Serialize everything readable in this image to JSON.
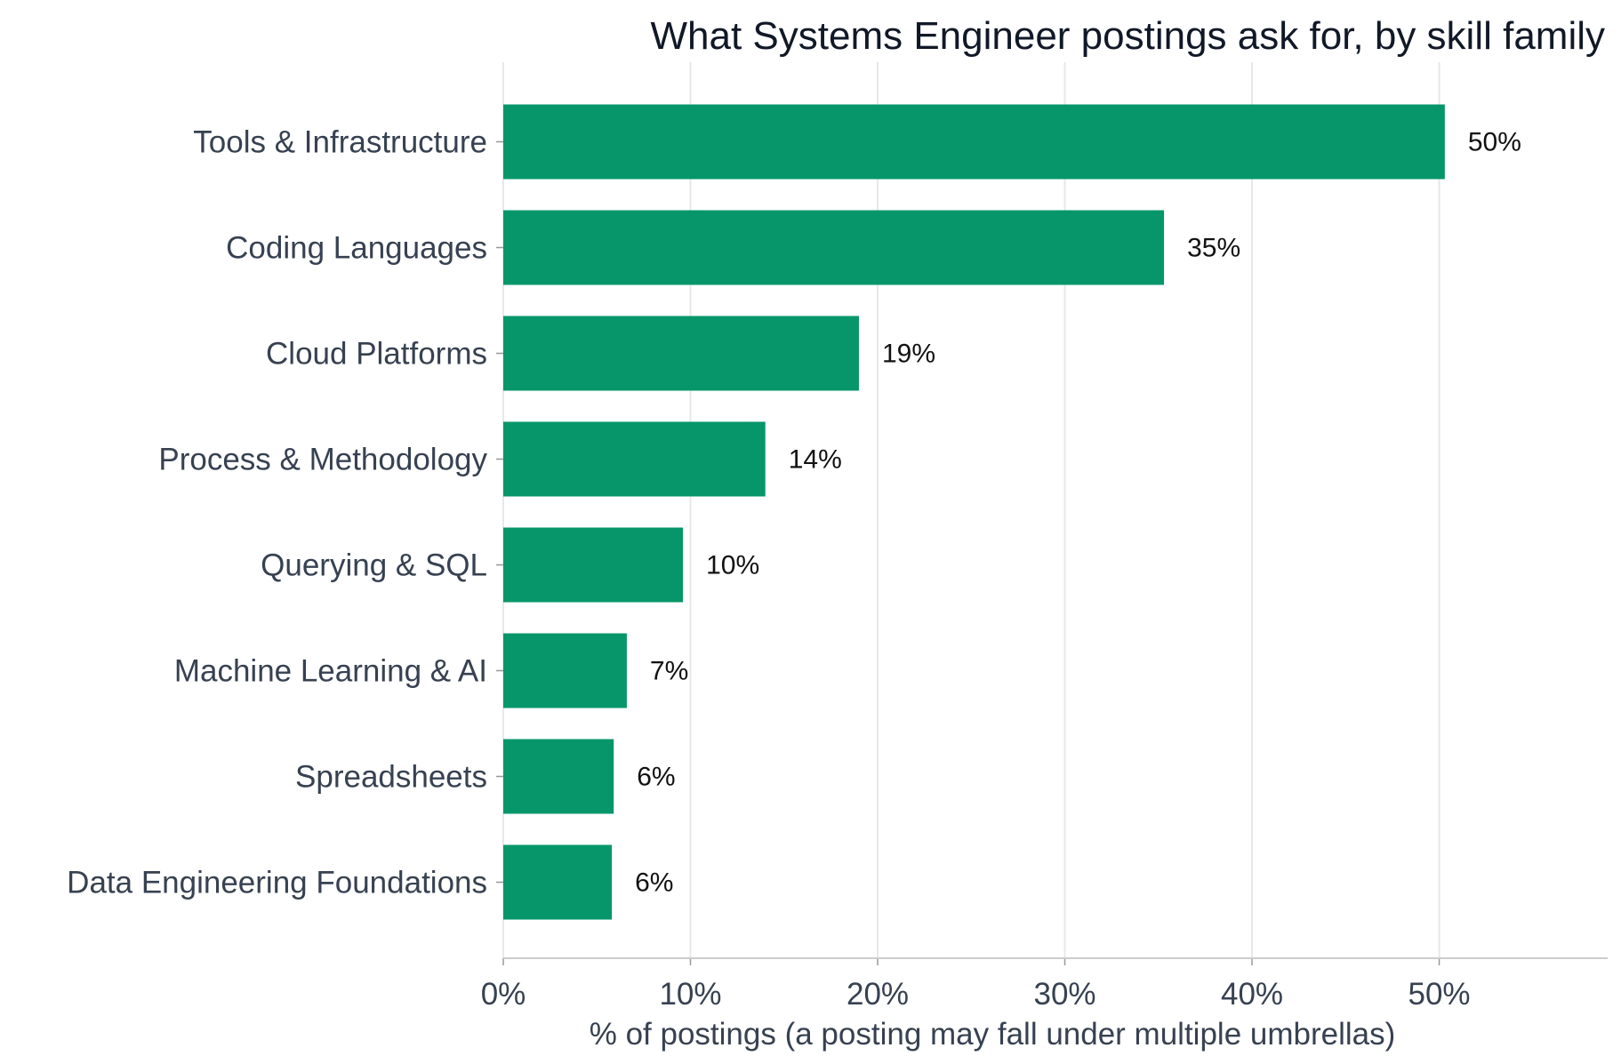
{
  "chart_data": {
    "type": "bar",
    "orientation": "horizontal",
    "title": "What Systems Engineer postings ask for, by skill family",
    "xlabel": "% of postings (a posting may fall under multiple umbrellas)",
    "ylabel": "",
    "categories": [
      "Tools & Infrastructure",
      "Coding Languages",
      "Cloud Platforms",
      "Process & Methodology",
      "Querying & SQL",
      "Machine Learning & AI",
      "Spreadsheets",
      "Data Engineering Foundations"
    ],
    "values": [
      50.3,
      35.3,
      19.0,
      14.0,
      9.6,
      6.6,
      5.9,
      5.8
    ],
    "value_labels": [
      "50%",
      "35%",
      "19%",
      "14%",
      "10%",
      "7%",
      "6%",
      "6%"
    ],
    "xlim": [
      0,
      59
    ],
    "xticks": [
      0,
      10,
      20,
      30,
      40,
      50
    ],
    "xtick_labels": [
      "0%",
      "10%",
      "20%",
      "30%",
      "40%",
      "50%"
    ],
    "grid": "vertical",
    "bar_color": "#069669"
  }
}
